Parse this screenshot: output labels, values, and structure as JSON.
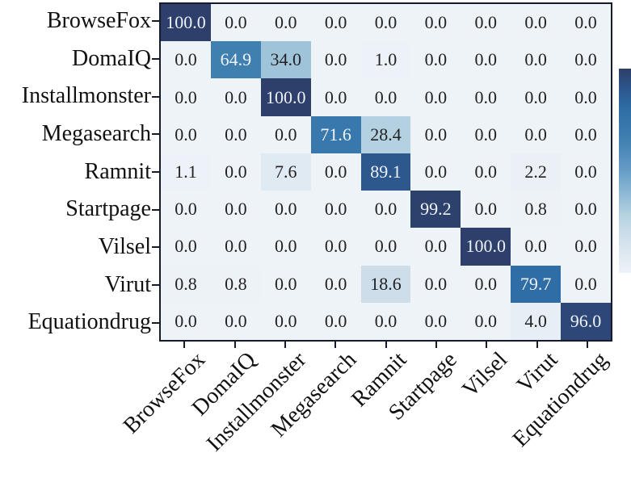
{
  "figure": {
    "background": "#ffffff",
    "frame_color": "#161b2c"
  },
  "chart_data": {
    "type": "heatmap",
    "title": "",
    "xlabel": "",
    "ylabel": "",
    "categories": [
      "BrowseFox",
      "DomaIQ",
      "Installmonster",
      "Megasearch",
      "Ramnit",
      "Startpage",
      "Vilsel",
      "Virut",
      "Equationdrug"
    ],
    "row_labels": [
      "BrowseFox",
      "DomaIQ",
      "Installmonster",
      "Megasearch",
      "Ramnit",
      "Startpage",
      "Vilsel",
      "Virut",
      "Equationdrug"
    ],
    "matrix": [
      [
        100.0,
        0.0,
        0.0,
        0.0,
        0.0,
        0.0,
        0.0,
        0.0,
        0.0
      ],
      [
        0.0,
        64.9,
        34.0,
        0.0,
        1.0,
        0.0,
        0.0,
        0.0,
        0.0
      ],
      [
        0.0,
        0.0,
        100.0,
        0.0,
        0.0,
        0.0,
        0.0,
        0.0,
        0.0
      ],
      [
        0.0,
        0.0,
        0.0,
        71.6,
        28.4,
        0.0,
        0.0,
        0.0,
        0.0
      ],
      [
        1.1,
        0.0,
        7.6,
        0.0,
        89.1,
        0.0,
        0.0,
        2.2,
        0.0
      ],
      [
        0.0,
        0.0,
        0.0,
        0.0,
        0.0,
        99.2,
        0.0,
        0.8,
        0.0
      ],
      [
        0.0,
        0.0,
        0.0,
        0.0,
        0.0,
        0.0,
        100.0,
        0.0,
        0.0
      ],
      [
        0.8,
        0.8,
        0.0,
        0.0,
        18.6,
        0.0,
        0.0,
        79.7,
        0.0
      ],
      [
        0.0,
        0.0,
        0.0,
        0.0,
        0.0,
        0.0,
        0.0,
        4.0,
        96.0
      ]
    ],
    "value_range": [
      0,
      100
    ],
    "value_format": "one_decimal",
    "grid": false,
    "legend": "colorbar-right",
    "colormap": {
      "name": "Blues",
      "stops": [
        [
          0,
          "#eef3f8"
        ],
        [
          19,
          "#ccdde9"
        ],
        [
          28,
          "#b5d2e2"
        ],
        [
          34,
          "#9fc4da"
        ],
        [
          50,
          "#669dc7"
        ],
        [
          65,
          "#4080b0"
        ],
        [
          80,
          "#2f6da6"
        ],
        [
          90,
          "#2c568c"
        ],
        [
          100,
          "#2d3f6a"
        ]
      ]
    },
    "text_colors": {
      "light": "#eef2f8",
      "dark": "#222222",
      "light_threshold": 55
    }
  }
}
